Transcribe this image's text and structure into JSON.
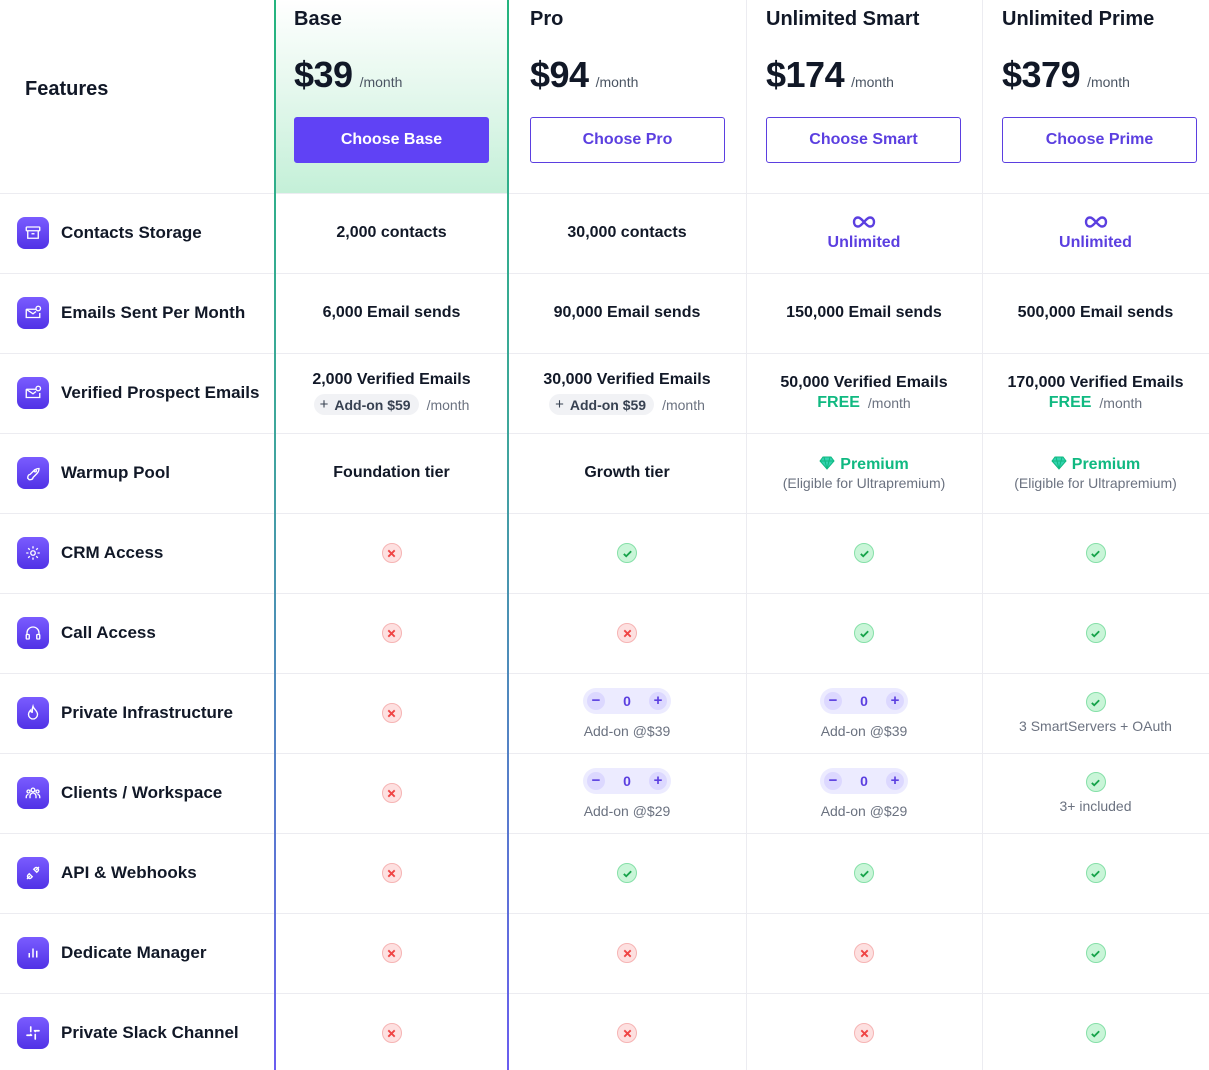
{
  "header": {
    "features_title": "Features",
    "plans": [
      {
        "name": "Base",
        "price": "$39",
        "unit": "/month",
        "button": "Choose Base",
        "highlighted": true
      },
      {
        "name": "Pro",
        "price": "$94",
        "unit": "/month",
        "button": "Choose Pro"
      },
      {
        "name": "Unlimited Smart",
        "price": "$174",
        "unit": "/month",
        "button": "Choose Smart"
      },
      {
        "name": "Unlimited Prime",
        "price": "$379",
        "unit": "/month",
        "button": "Choose Prime"
      }
    ]
  },
  "colors": {
    "accent": "#6042f5",
    "success": "#10b981",
    "error": "#ef4444",
    "base_highlight_top": "#24b47e",
    "base_highlight_bottom": "#6a5df0"
  },
  "features": [
    {
      "label": "Contacts Storage",
      "icon": "archive-box-icon"
    },
    {
      "label": "Emails Sent Per Month",
      "icon": "mail-check-icon"
    },
    {
      "label": "Verified Prospect Emails",
      "icon": "mail-check-icon"
    },
    {
      "label": "Warmup Pool",
      "icon": "rocket-icon"
    },
    {
      "label": "CRM Access",
      "icon": "gear-icon"
    },
    {
      "label": "Call Access",
      "icon": "headset-icon"
    },
    {
      "label": "Private Infrastructure",
      "icon": "flame-icon"
    },
    {
      "label": "Clients / Workspace",
      "icon": "users-icon"
    },
    {
      "label": "API & Webhooks",
      "icon": "plug-icon"
    },
    {
      "label": "Dedicate Manager",
      "icon": "bar-chart-icon"
    },
    {
      "label": "Private Slack Channel",
      "icon": "slack-icon"
    }
  ],
  "contacts": {
    "base": "2,000 contacts",
    "pro": "30,000 contacts",
    "smart": "Unlimited",
    "prime": "Unlimited"
  },
  "emails_sent": {
    "base": "6,000 Email sends",
    "pro": "90,000 Email sends",
    "smart": "150,000 Email sends",
    "prime": "500,000 Email sends"
  },
  "verified": {
    "base": {
      "main": "2,000 Verified Emails",
      "addon": "Add-on $59",
      "unit": "/month"
    },
    "pro": {
      "main": "30,000 Verified Emails",
      "addon": "Add-on $59",
      "unit": "/month"
    },
    "smart": {
      "main": "50,000 Verified Emails",
      "free": "FREE",
      "unit": "/month"
    },
    "prime": {
      "main": "170,000 Verified Emails",
      "free": "FREE",
      "unit": "/month"
    }
  },
  "warmup": {
    "base": "Foundation tier",
    "pro": "Growth tier",
    "smart": {
      "label": "Premium",
      "note": "(Eligible for Ultrapremium)"
    },
    "prime": {
      "label": "Premium",
      "note": "(Eligible for Ultrapremium)"
    }
  },
  "private_infra": {
    "pro": {
      "value": "0",
      "note": "Add-on @$39"
    },
    "smart": {
      "value": "0",
      "note": "Add-on @$39"
    },
    "prime": {
      "note": "3 SmartServers + OAuth"
    }
  },
  "clients_workspace": {
    "pro": {
      "value": "0",
      "note": "Add-on @$29"
    },
    "smart": {
      "value": "0",
      "note": "Add-on @$29"
    },
    "prime": {
      "note": "3+ included"
    }
  },
  "availability": {
    "crm_access": [
      false,
      true,
      true,
      true
    ],
    "call_access": [
      false,
      false,
      true,
      true
    ],
    "private_infrastructure": [
      false,
      null,
      null,
      true
    ],
    "clients_workspace": [
      false,
      null,
      null,
      true
    ],
    "api_webhooks": [
      false,
      true,
      true,
      true
    ],
    "dedicate_manager": [
      false,
      false,
      false,
      true
    ],
    "private_slack_channel": [
      false,
      false,
      false,
      true
    ]
  },
  "stepper": {
    "minus": "−",
    "plus": "+"
  }
}
